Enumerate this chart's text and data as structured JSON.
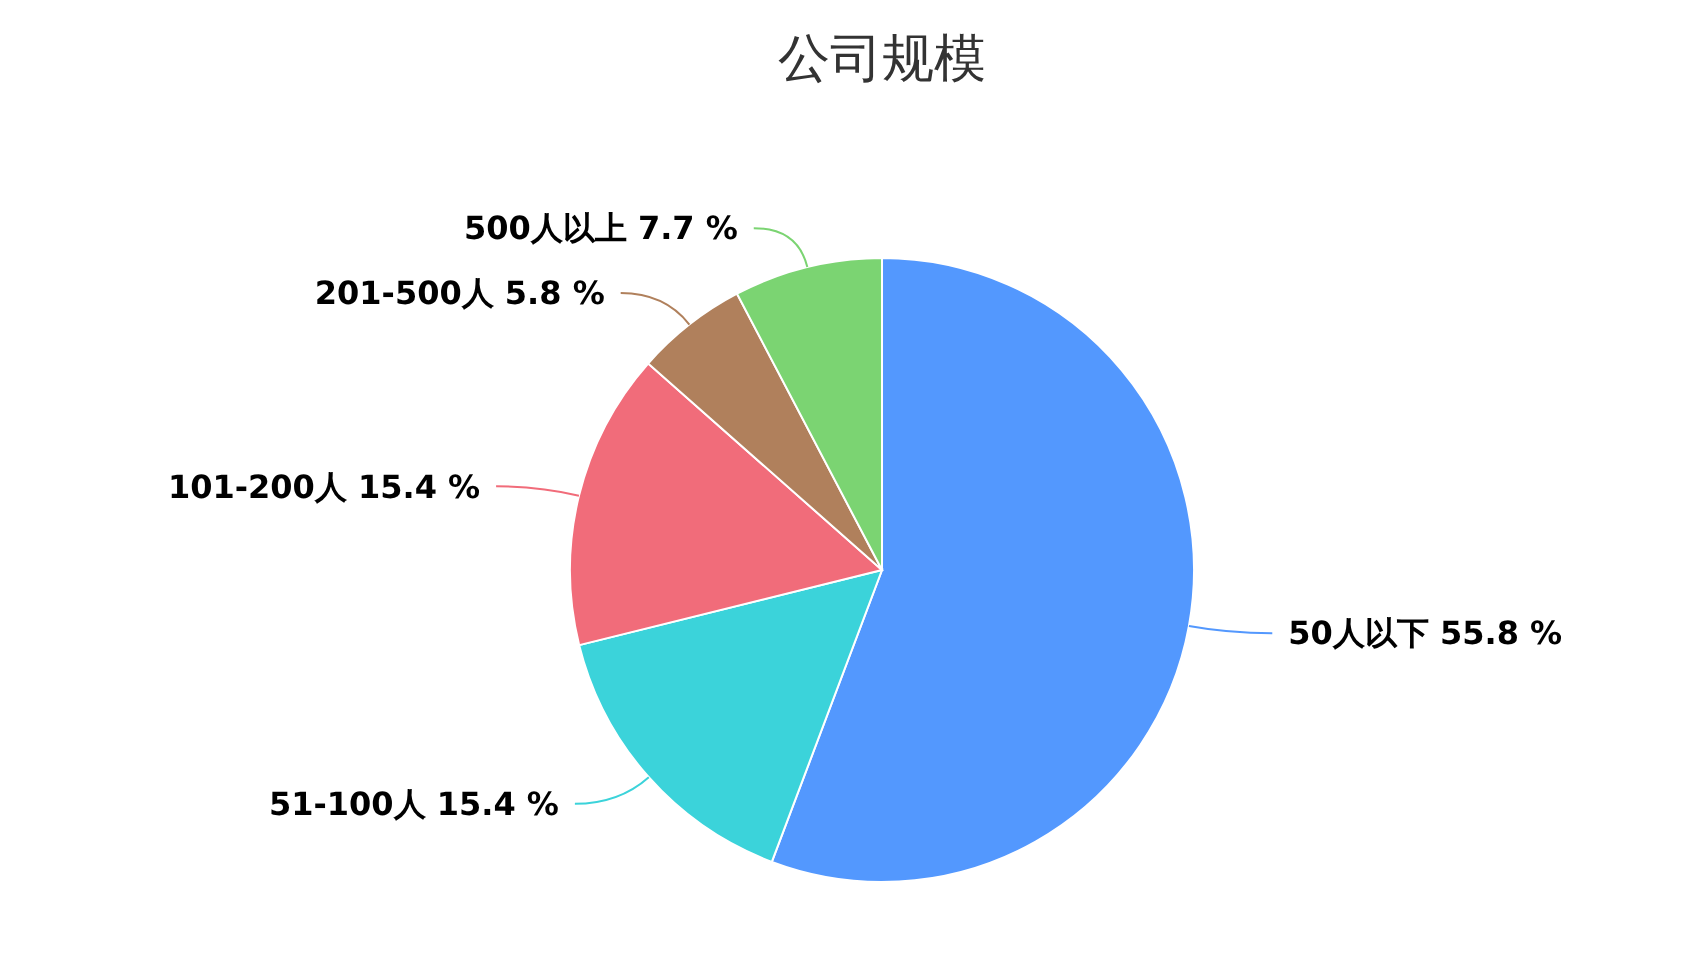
{
  "chart_data": {
    "type": "pie",
    "title": "公司规模",
    "categories": [
      "50人以下",
      "51-100人",
      "101-200人",
      "201-500人",
      "500人以上"
    ],
    "values": [
      55.8,
      15.4,
      15.4,
      5.8,
      7.7
    ],
    "value_labels": [
      "55.8 %",
      "15.4 %",
      "15.4 %",
      "5.8 %",
      "7.7 %"
    ],
    "colors": [
      "#5398fe",
      "#3bd3da",
      "#f16c7a",
      "#b0805c",
      "#7bd472"
    ]
  }
}
